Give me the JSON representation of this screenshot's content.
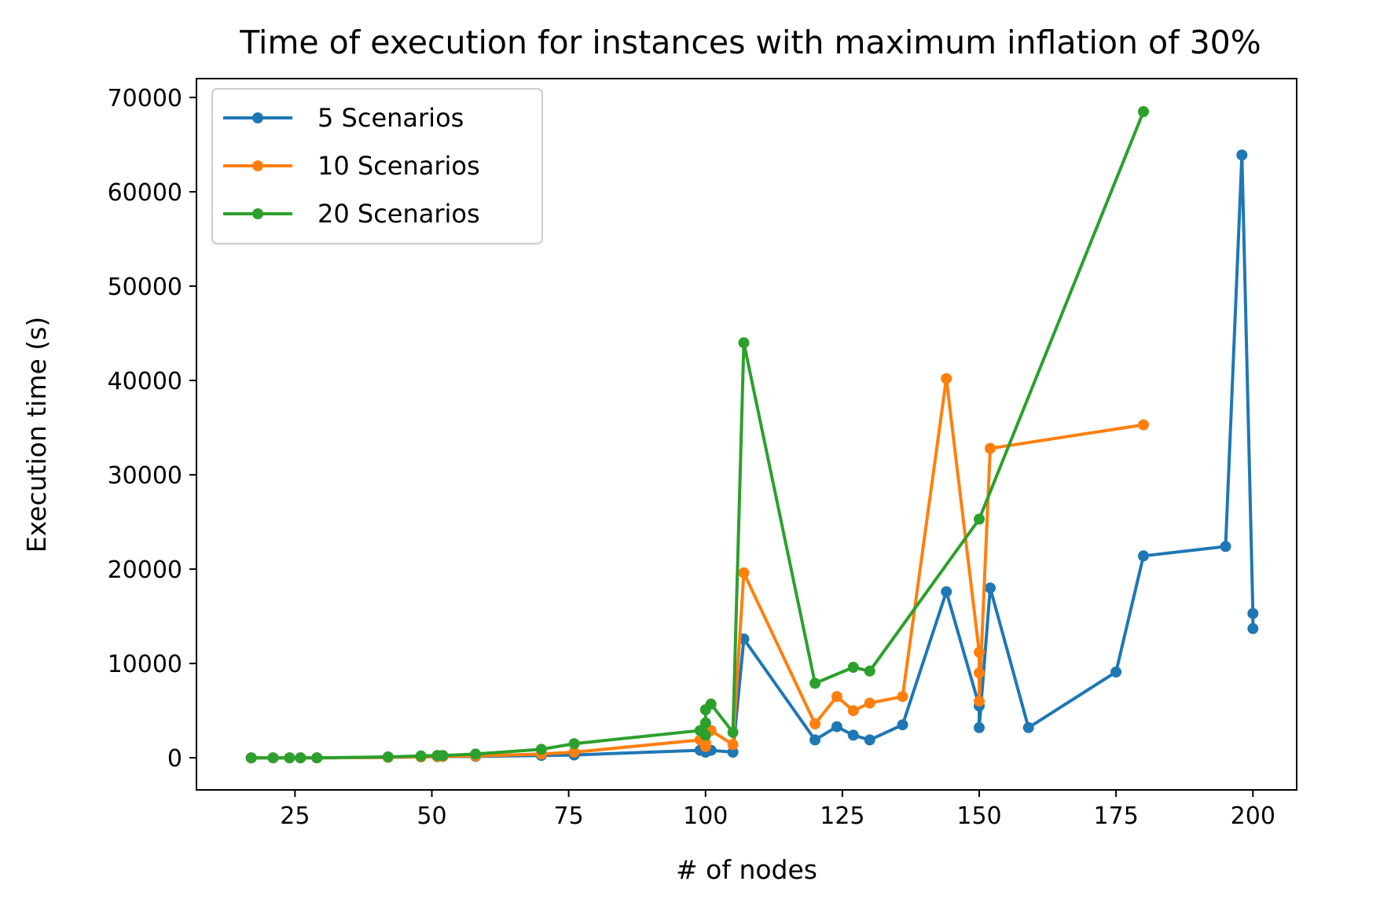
{
  "chart_data": {
    "type": "line",
    "title": "Time of execution for instances with maximum inflation of 30%",
    "xlabel": "# of nodes",
    "ylabel": "Execution time (s)",
    "xlim": [
      7,
      208
    ],
    "ylim": [
      -3400,
      72000
    ],
    "xticks": [
      25,
      50,
      75,
      100,
      125,
      150,
      175,
      200
    ],
    "yticks": [
      0,
      10000,
      20000,
      30000,
      40000,
      50000,
      60000,
      70000
    ],
    "grid": false,
    "legend": "top-left",
    "series": [
      {
        "name": "5 Scenarios",
        "color": "#1f77b4",
        "points": [
          [
            17,
            0
          ],
          [
            21,
            0
          ],
          [
            24,
            0
          ],
          [
            26,
            0
          ],
          [
            29,
            0
          ],
          [
            42,
            50
          ],
          [
            48,
            100
          ],
          [
            51,
            120
          ],
          [
            52,
            130
          ],
          [
            58,
            150
          ],
          [
            70,
            250
          ],
          [
            76,
            300
          ],
          [
            99,
            800
          ],
          [
            100,
            1000
          ],
          [
            100,
            600
          ],
          [
            101,
            800
          ],
          [
            105,
            600
          ],
          [
            107,
            12600
          ],
          [
            120,
            1900
          ],
          [
            124,
            3300
          ],
          [
            127,
            2400
          ],
          [
            130,
            1900
          ],
          [
            136,
            3500
          ],
          [
            144,
            17600
          ],
          [
            150,
            5500
          ],
          [
            150,
            3200
          ],
          [
            152,
            18000
          ],
          [
            159,
            3200
          ],
          [
            175,
            9100
          ],
          [
            180,
            21400
          ],
          [
            195,
            22400
          ],
          [
            198,
            63900
          ],
          [
            200,
            15300
          ],
          [
            200,
            13700
          ]
        ]
      },
      {
        "name": "10 Scenarios",
        "color": "#ff7f0e",
        "points": [
          [
            17,
            0
          ],
          [
            21,
            0
          ],
          [
            24,
            0
          ],
          [
            26,
            0
          ],
          [
            29,
            0
          ],
          [
            42,
            50
          ],
          [
            48,
            100
          ],
          [
            51,
            150
          ],
          [
            52,
            150
          ],
          [
            58,
            200
          ],
          [
            70,
            400
          ],
          [
            76,
            600
          ],
          [
            99,
            1900
          ],
          [
            100,
            1600
          ],
          [
            100,
            1200
          ],
          [
            101,
            2900
          ],
          [
            105,
            1400
          ],
          [
            107,
            19600
          ],
          [
            120,
            3600
          ],
          [
            124,
            6500
          ],
          [
            127,
            5000
          ],
          [
            130,
            5800
          ],
          [
            136,
            6500
          ],
          [
            144,
            40200
          ],
          [
            150,
            11200
          ],
          [
            150,
            9000
          ],
          [
            150,
            6000
          ],
          [
            152,
            32800
          ],
          [
            180,
            35300
          ]
        ]
      },
      {
        "name": "20 Scenarios",
        "color": "#2ca02c",
        "points": [
          [
            17,
            0
          ],
          [
            21,
            0
          ],
          [
            24,
            0
          ],
          [
            26,
            0
          ],
          [
            29,
            0
          ],
          [
            42,
            100
          ],
          [
            48,
            200
          ],
          [
            51,
            250
          ],
          [
            52,
            250
          ],
          [
            58,
            400
          ],
          [
            70,
            900
          ],
          [
            76,
            1500
          ],
          [
            99,
            2900
          ],
          [
            100,
            2400
          ],
          [
            100,
            3700
          ],
          [
            100,
            5100
          ],
          [
            101,
            5700
          ],
          [
            105,
            2700
          ],
          [
            107,
            44000
          ],
          [
            120,
            7900
          ],
          [
            127,
            9600
          ],
          [
            130,
            9200
          ],
          [
            150,
            25300
          ],
          [
            180,
            68500
          ]
        ]
      }
    ]
  }
}
